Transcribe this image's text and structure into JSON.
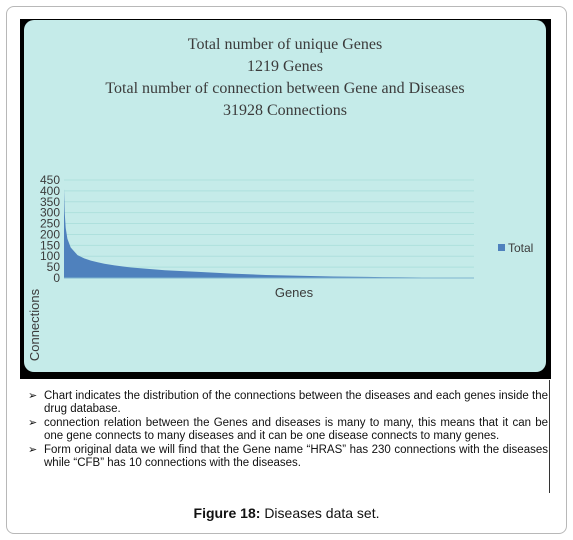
{
  "figure": {
    "caption_label": "Figure 18:",
    "caption_text": "Diseases data set."
  },
  "chart_titles": {
    "line1": "Total number of unique Genes",
    "line2": "1219 Genes",
    "line3": "Total number of connection between Gene and Diseases",
    "line4": "31928 Connections"
  },
  "bullets": [
    "Chart indicates the distribution of the connections between the diseases and each genes inside the drug database.",
    "connection relation between the Genes and diseases is many to many, this means that it can be one gene connects to many diseases and it can be one disease connects to many genes.",
    "Form original data we will find that the Gene name “HRAS” has 230 connections with the diseases while “CFB” has 10 connections with the diseases."
  ],
  "bullet_symbol": "➢",
  "chart_data": {
    "type": "area",
    "xlabel": "Genes",
    "ylabel": "Connections",
    "ylim": [
      0,
      450
    ],
    "yticks": [
      0,
      50,
      100,
      150,
      200,
      250,
      300,
      350,
      400,
      450
    ],
    "grid": true,
    "legend_position": "right",
    "series": [
      {
        "name": "Total",
        "color": "#4f81bd",
        "x": [
          0,
          2,
          5,
          10,
          20,
          40,
          60,
          80,
          100,
          120,
          150,
          200,
          250,
          300,
          400,
          500,
          600,
          700,
          800,
          900,
          1000,
          1100,
          1219
        ],
        "values": [
          410,
          300,
          230,
          180,
          140,
          105,
          90,
          80,
          72,
          65,
          58,
          48,
          42,
          36,
          28,
          20,
          14,
          10,
          7,
          5,
          3,
          2,
          1
        ]
      }
    ]
  },
  "colors": {
    "chart_background": "#c5ebe9",
    "series": "#4f81bd",
    "text": "#3b3b3b"
  }
}
